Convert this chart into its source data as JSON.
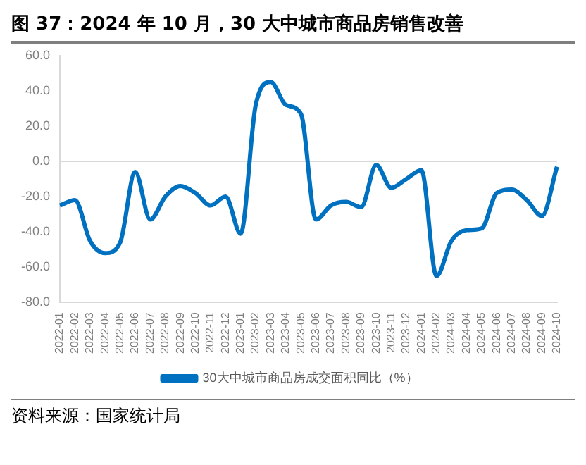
{
  "chart_data": {
    "type": "line",
    "title": "图 37：2024 年 10 月，30 大中城市商品房销售改善",
    "categories": [
      "2022-01",
      "2022-02",
      "2022-03",
      "2022-04",
      "2022-05",
      "2022-06",
      "2022-07",
      "2022-08",
      "2022-09",
      "2022-10",
      "2022-11",
      "2022-12",
      "2023-01",
      "2023-02",
      "2023-03",
      "2023-04",
      "2023-05",
      "2023-06",
      "2023-07",
      "2023-08",
      "2023-09",
      "2023-10",
      "2023-11",
      "2023-12",
      "2024-01",
      "2024-02",
      "2024-03",
      "2024-04",
      "2024-05",
      "2024-06",
      "2024-07",
      "2024-08",
      "2024-09",
      "2024-10"
    ],
    "series": [
      {
        "name": "30大中城市商品房成交面积同比（%）",
        "color": "#0070c0",
        "values": [
          -25,
          -22,
          -45,
          -52,
          -46,
          -6,
          -33,
          -20,
          -14,
          -18,
          -25,
          -20,
          -41,
          32,
          45,
          32,
          27,
          -33,
          -25,
          -23,
          -26,
          -2,
          -15,
          -10,
          -5,
          -65,
          -45,
          -39,
          -38,
          -18,
          -16,
          -22,
          -31,
          -3
        ]
      }
    ],
    "ylim": [
      -80,
      60
    ],
    "yticks": [
      {
        "value": -80,
        "label": "-80.0"
      },
      {
        "value": -60,
        "label": "-60.0"
      },
      {
        "value": -40,
        "label": "-40.0"
      },
      {
        "value": -20,
        "label": "-20.0"
      },
      {
        "value": 0,
        "label": "0.0"
      },
      {
        "value": 20,
        "label": "20.0"
      },
      {
        "value": 40,
        "label": "40.0"
      },
      {
        "value": 60,
        "label": "60.0"
      }
    ],
    "ref_lines": [
      {
        "axis": "y",
        "value": 0,
        "color": "#d9d9d9"
      }
    ],
    "legend": "bottom",
    "marker": "none",
    "line_style": "solid",
    "annotations": [
      "资料来源：国家统计局"
    ]
  }
}
